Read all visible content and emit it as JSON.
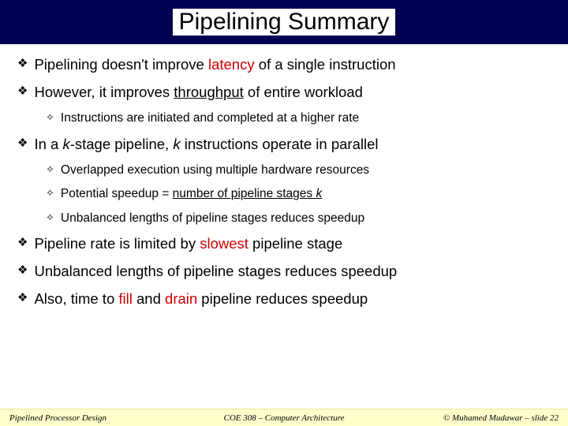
{
  "title": "Pipelining Summary",
  "bullets": [
    {
      "level": 1,
      "parts": [
        {
          "t": "Pipelining doesn't improve "
        },
        {
          "t": "latency",
          "cls": "red"
        },
        {
          "t": " of a single instruction"
        }
      ]
    },
    {
      "level": 1,
      "parts": [
        {
          "t": "However, it improves "
        },
        {
          "t": "throughput",
          "cls": "u"
        },
        {
          "t": " of entire workload"
        }
      ]
    },
    {
      "level": 2,
      "parts": [
        {
          "t": "Instructions are initiated and completed at a higher rate"
        }
      ]
    },
    {
      "level": 1,
      "parts": [
        {
          "t": "In a "
        },
        {
          "t": "k",
          "cls": "it"
        },
        {
          "t": "-stage pipeline, "
        },
        {
          "t": "k",
          "cls": "it"
        },
        {
          "t": " instructions operate in parallel"
        }
      ]
    },
    {
      "level": 2,
      "parts": [
        {
          "t": "Overlapped execution using multiple hardware resources"
        }
      ]
    },
    {
      "level": 2,
      "parts": [
        {
          "t": "Potential speedup = "
        },
        {
          "t": "number of pipeline stages ",
          "cls": "u"
        },
        {
          "t": "k",
          "cls": "u it"
        }
      ]
    },
    {
      "level": 2,
      "parts": [
        {
          "t": "Unbalanced lengths of pipeline stages reduces speedup"
        }
      ]
    },
    {
      "level": 1,
      "parts": [
        {
          "t": "Pipeline rate is limited by "
        },
        {
          "t": "slowest",
          "cls": "red"
        },
        {
          "t": " pipeline stage"
        }
      ]
    },
    {
      "level": 1,
      "parts": [
        {
          "t": "Unbalanced lengths of pipeline stages reduces speedup"
        }
      ]
    },
    {
      "level": 1,
      "parts": [
        {
          "t": "Also, time to "
        },
        {
          "t": "fill",
          "cls": "red"
        },
        {
          "t": " and "
        },
        {
          "t": "drain",
          "cls": "red"
        },
        {
          "t": " pipeline reduces speedup"
        }
      ]
    }
  ],
  "footer": {
    "left": "Pipelined Processor Design",
    "center": "COE 308 – Computer Architecture",
    "right": "© Muhamed Mudawar – slide 22"
  },
  "markers": {
    "l1": "❖",
    "l2": "✧"
  },
  "colors": {
    "title_bg": "#000050",
    "title_box_bg": "#ffffff",
    "body_bg": "#ffffff",
    "footer_bg": "#ffffcc",
    "accent_red": "#cc0000",
    "text": "#000000"
  }
}
